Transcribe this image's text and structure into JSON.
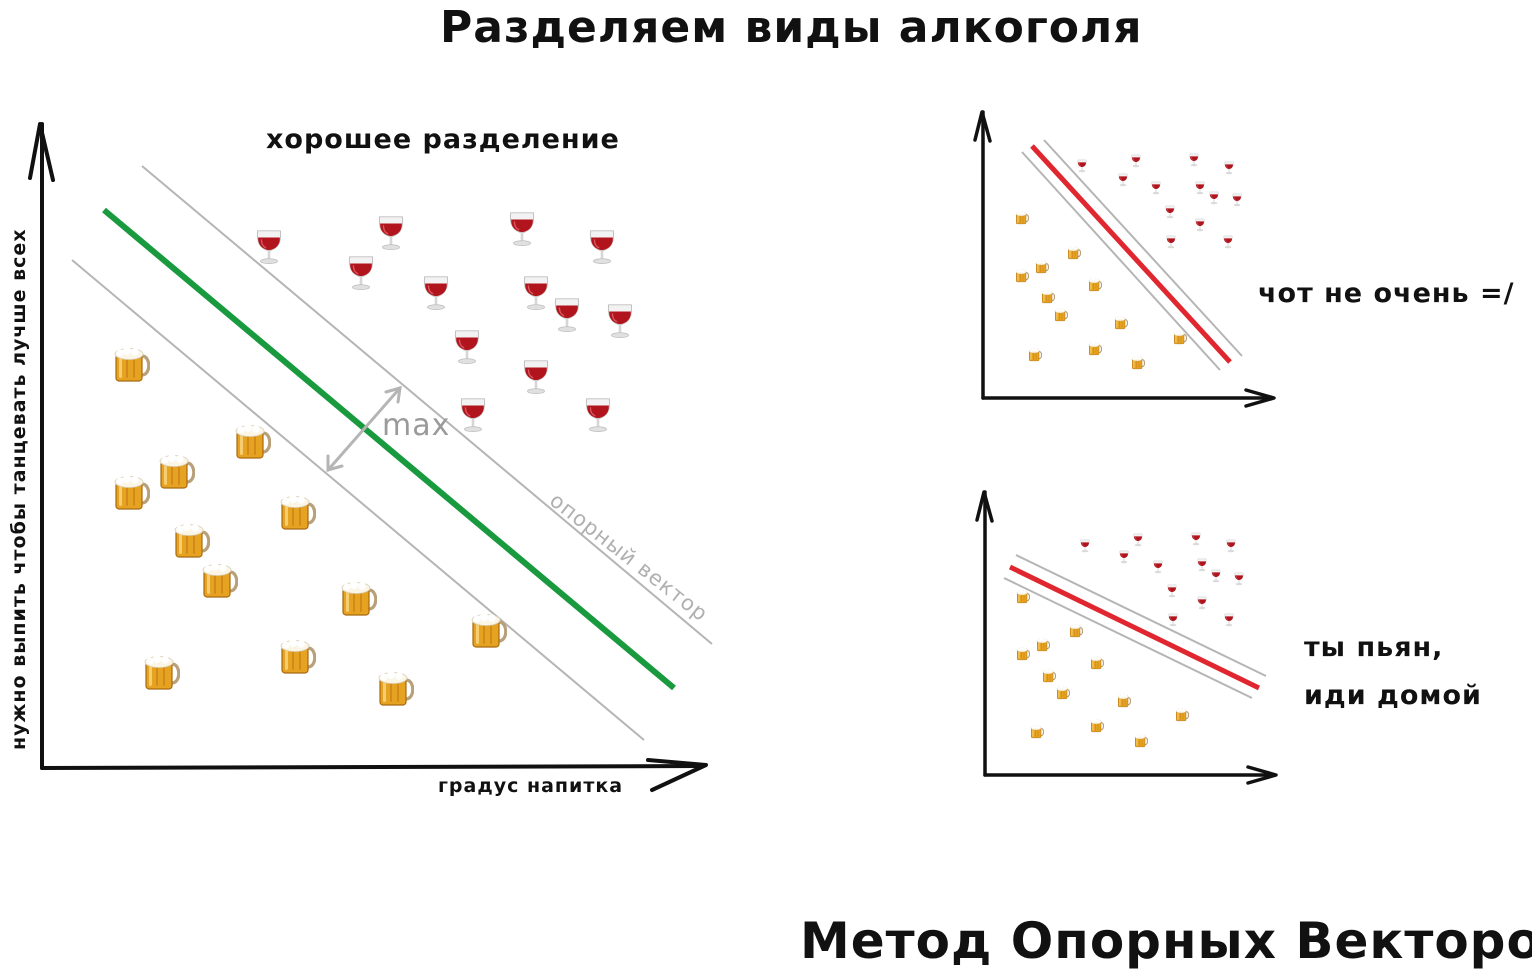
{
  "title": "Разделяем виды алкоголя",
  "footer_title": "Метод Опорных Векторов",
  "main_plot": {
    "label": "хорошее разделение",
    "x_axis_label": "градус напитка",
    "y_axis_label": "нужно выпить чтобы танцевать лучше всех",
    "margin_label": "max",
    "support_vector_label": "опорный вектор",
    "separator_color": "#1a9a3e",
    "support_line_color": "#b5b5b5",
    "beer_icon": "beer-mug-icon",
    "wine_icon": "wine-glass-icon"
  },
  "bad_plot_1": {
    "label": "чот не очень =/",
    "separator_color": "#e0262e"
  },
  "bad_plot_2": {
    "label_line1": "ты пьян,",
    "label_line2": "иди домой",
    "separator_color": "#e0262e"
  }
}
